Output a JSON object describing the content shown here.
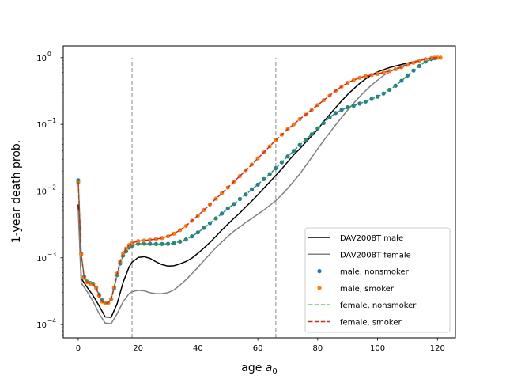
{
  "chart_data": {
    "type": "line",
    "title": "",
    "xlabel": "age",
    "xlabel_symbol": "a",
    "xlabel_sub": "0",
    "ylabel": "1-year death prob.",
    "xlim": [
      -5,
      126
    ],
    "ylim": [
      6.3e-05,
      1.5
    ],
    "yscale": "log",
    "grid": false,
    "legend_position": "lower-right",
    "x_ticks": [
      0,
      20,
      40,
      60,
      80,
      100,
      120
    ],
    "x_tick_labels": [
      "0",
      "20",
      "40",
      "60",
      "80",
      "100",
      "120"
    ],
    "y_ticks": [
      0.0001,
      0.001,
      0.01,
      0.1,
      1
    ],
    "y_tick_labels": [
      "10",
      "10",
      "10",
      "10",
      "10"
    ],
    "y_tick_exponents": [
      "−4",
      "−3",
      "−2",
      "−1",
      "0"
    ],
    "vlines": [
      {
        "x": 18,
        "y_from": 6.3e-05,
        "y_to": 1.0,
        "color": "#b0b0b0",
        "style": "dashed"
      },
      {
        "x": 66,
        "y_from": 6.3e-05,
        "y_to": 1.0,
        "color": "#b0b0b0",
        "style": "dashed"
      }
    ],
    "series": [
      {
        "name": "DAV2008T male",
        "kind": "line",
        "color": "#000000",
        "x": [
          0,
          1,
          3,
          5,
          7,
          9,
          11,
          13,
          15,
          17,
          18,
          20,
          22,
          24,
          26,
          28,
          30,
          32,
          34,
          36,
          38,
          40,
          42,
          44,
          46,
          48,
          50,
          52,
          54,
          56,
          58,
          60,
          62,
          64,
          66,
          68,
          70,
          72,
          74,
          76,
          78,
          80,
          82,
          84,
          86,
          88,
          90,
          92,
          94,
          96,
          98,
          100,
          102,
          104,
          106,
          108,
          110,
          112,
          114,
          116,
          118,
          120
        ],
        "y": [
          0.0063,
          0.00049,
          0.00036,
          0.00027,
          0.00019,
          0.00013,
          0.000128,
          0.000205,
          0.00043,
          0.00073,
          0.00086,
          0.00101,
          0.00104,
          0.00098,
          0.00087,
          0.00079,
          0.00075,
          0.00076,
          0.00081,
          0.00088,
          0.00099,
          0.00117,
          0.0014,
          0.0017,
          0.0021,
          0.0026,
          0.0032,
          0.0039,
          0.0047,
          0.0058,
          0.0071,
          0.0088,
          0.011,
          0.0137,
          0.0172,
          0.0215,
          0.0275,
          0.035,
          0.043,
          0.054,
          0.067,
          0.084,
          0.11,
          0.14,
          0.178,
          0.225,
          0.28,
          0.34,
          0.41,
          0.48,
          0.55,
          0.61,
          0.66,
          0.71,
          0.75,
          0.79,
          0.83,
          0.87,
          0.91,
          0.95,
          0.98,
          1.0
        ]
      },
      {
        "name": "DAV2008T female",
        "kind": "line",
        "color": "#808080",
        "x": [
          0,
          1,
          3,
          5,
          7,
          9,
          11,
          13,
          15,
          17,
          18,
          20,
          22,
          24,
          26,
          28,
          30,
          32,
          34,
          36,
          38,
          40,
          42,
          44,
          46,
          48,
          50,
          52,
          54,
          56,
          58,
          60,
          62,
          64,
          66,
          68,
          70,
          72,
          74,
          76,
          78,
          80,
          82,
          84,
          86,
          88,
          90,
          92,
          94,
          96,
          98,
          100,
          102,
          104,
          106,
          108,
          110,
          112,
          114,
          116,
          118,
          120
        ],
        "y": [
          0.0053,
          0.00042,
          0.00031,
          0.00022,
          0.000145,
          0.000105,
          0.000103,
          0.000145,
          0.00022,
          0.00029,
          0.00031,
          0.000325,
          0.00032,
          0.0003,
          0.00029,
          0.00029,
          0.0003,
          0.00033,
          0.00039,
          0.00047,
          0.00058,
          0.00072,
          0.00091,
          0.00114,
          0.00142,
          0.00173,
          0.0021,
          0.0025,
          0.0029,
          0.0034,
          0.0039,
          0.0045,
          0.0052,
          0.0061,
          0.0072,
          0.0088,
          0.011,
          0.014,
          0.018,
          0.024,
          0.032,
          0.043,
          0.057,
          0.075,
          0.098,
          0.127,
          0.163,
          0.207,
          0.26,
          0.32,
          0.39,
          0.46,
          0.54,
          0.61,
          0.68,
          0.74,
          0.8,
          0.86,
          0.91,
          0.95,
          0.98,
          1.0
        ]
      },
      {
        "name": "male, nonsmoker",
        "kind": "dots",
        "color": "#1f77b4",
        "x": [
          0,
          1,
          2,
          3,
          4,
          5,
          6,
          7,
          8,
          9,
          10,
          11,
          12,
          13,
          14,
          15,
          16,
          17,
          18,
          20,
          22,
          24,
          26,
          28,
          30,
          32,
          34,
          36,
          38,
          40,
          42,
          44,
          46,
          48,
          50,
          52,
          54,
          56,
          58,
          60,
          62,
          64,
          66,
          68,
          70,
          72,
          74,
          76,
          78,
          80,
          82,
          84,
          86,
          88,
          90,
          92,
          94,
          96,
          98,
          100,
          102,
          104,
          106,
          108,
          110,
          112,
          114,
          116,
          118,
          119,
          120,
          121
        ],
        "y": [
          0.0145,
          0.00115,
          0.00052,
          0.00044,
          0.00042,
          0.00041,
          0.00036,
          0.00028,
          0.00023,
          0.00021,
          0.00021,
          0.00024,
          0.00035,
          0.00055,
          0.00082,
          0.00108,
          0.00125,
          0.00142,
          0.00152,
          0.00162,
          0.00163,
          0.00162,
          0.00161,
          0.00161,
          0.00162,
          0.00166,
          0.00175,
          0.00188,
          0.0021,
          0.0024,
          0.0028,
          0.0033,
          0.0039,
          0.0046,
          0.0055,
          0.0064,
          0.0076,
          0.0089,
          0.0106,
          0.0125,
          0.0151,
          0.018,
          0.022,
          0.027,
          0.033,
          0.04,
          0.049,
          0.059,
          0.071,
          0.087,
          0.105,
          0.127,
          0.148,
          0.165,
          0.18,
          0.19,
          0.205,
          0.22,
          0.24,
          0.26,
          0.29,
          0.33,
          0.38,
          0.45,
          0.54,
          0.64,
          0.75,
          0.87,
          0.95,
          0.98,
          1.0,
          1.0
        ]
      },
      {
        "name": "male, smoker",
        "kind": "dots",
        "color": "#ff7f0e",
        "x": [
          0,
          1,
          2,
          3,
          4,
          5,
          6,
          7,
          8,
          9,
          10,
          11,
          12,
          13,
          14,
          15,
          16,
          17,
          18,
          20,
          22,
          24,
          26,
          28,
          30,
          32,
          34,
          36,
          38,
          40,
          42,
          44,
          46,
          48,
          50,
          52,
          54,
          56,
          58,
          60,
          62,
          64,
          66,
          68,
          70,
          72,
          74,
          76,
          78,
          80,
          82,
          84,
          86,
          88,
          90,
          92,
          94,
          96,
          98,
          100,
          102,
          104,
          106,
          108,
          110,
          112,
          114,
          116,
          118,
          119,
          120,
          121
        ],
        "y": [
          0.0135,
          0.00112,
          0.0005,
          0.00043,
          0.00041,
          0.0004,
          0.00035,
          0.00027,
          0.00022,
          0.00021,
          0.00021,
          0.00024,
          0.00036,
          0.00058,
          0.00088,
          0.00117,
          0.00138,
          0.00155,
          0.00166,
          0.00178,
          0.00182,
          0.00186,
          0.00191,
          0.00198,
          0.0021,
          0.0023,
          0.0026,
          0.003,
          0.0036,
          0.0043,
          0.0052,
          0.0063,
          0.0077,
          0.0093,
          0.0113,
          0.0138,
          0.0168,
          0.0205,
          0.025,
          0.031,
          0.038,
          0.047,
          0.058,
          0.07,
          0.085,
          0.1,
          0.12,
          0.14,
          0.165,
          0.195,
          0.23,
          0.27,
          0.32,
          0.37,
          0.42,
          0.46,
          0.5,
          0.53,
          0.55,
          0.57,
          0.6,
          0.63,
          0.67,
          0.72,
          0.78,
          0.84,
          0.9,
          0.95,
          0.99,
          1.0,
          1.0,
          1.0
        ]
      },
      {
        "name": "female, nonsmoker",
        "kind": "dashed",
        "color": "#2ca02c",
        "x": [
          0,
          1,
          2,
          3,
          4,
          5,
          6,
          7,
          8,
          9,
          10,
          11,
          12,
          13,
          14,
          15,
          16,
          17,
          18,
          20,
          22,
          24,
          26,
          28,
          30,
          32,
          34,
          36,
          38,
          40,
          42,
          44,
          46,
          48,
          50,
          52,
          54,
          56,
          58,
          60,
          62,
          64,
          66,
          68,
          70,
          72,
          74,
          76,
          78,
          80,
          82,
          84,
          86,
          88,
          90,
          92,
          94,
          96,
          98,
          100,
          102,
          104,
          106,
          108,
          110,
          112,
          114,
          116,
          118,
          119,
          120,
          121
        ],
        "y": [
          0.0145,
          0.00115,
          0.00052,
          0.00044,
          0.00042,
          0.00041,
          0.00036,
          0.00028,
          0.00023,
          0.00021,
          0.00021,
          0.00024,
          0.00035,
          0.00055,
          0.00082,
          0.00108,
          0.00125,
          0.00142,
          0.00152,
          0.00162,
          0.00163,
          0.00162,
          0.00161,
          0.00161,
          0.00162,
          0.00166,
          0.00175,
          0.00188,
          0.0021,
          0.0024,
          0.0028,
          0.0033,
          0.0039,
          0.0046,
          0.0055,
          0.0064,
          0.0076,
          0.0089,
          0.0106,
          0.0125,
          0.0151,
          0.018,
          0.022,
          0.027,
          0.033,
          0.04,
          0.049,
          0.059,
          0.071,
          0.087,
          0.105,
          0.127,
          0.148,
          0.165,
          0.18,
          0.19,
          0.205,
          0.22,
          0.24,
          0.26,
          0.29,
          0.33,
          0.38,
          0.45,
          0.54,
          0.64,
          0.75,
          0.87,
          0.95,
          0.98,
          1.0,
          1.0
        ]
      },
      {
        "name": "female, smoker",
        "kind": "dashed",
        "color": "#d62728",
        "x": [
          0,
          1,
          2,
          3,
          4,
          5,
          6,
          7,
          8,
          9,
          10,
          11,
          12,
          13,
          14,
          15,
          16,
          17,
          18,
          20,
          22,
          24,
          26,
          28,
          30,
          32,
          34,
          36,
          38,
          40,
          42,
          44,
          46,
          48,
          50,
          52,
          54,
          56,
          58,
          60,
          62,
          64,
          66,
          68,
          70,
          72,
          74,
          76,
          78,
          80,
          82,
          84,
          86,
          88,
          90,
          92,
          94,
          96,
          98,
          100,
          102,
          104,
          106,
          108,
          110,
          112,
          114,
          116,
          118,
          119,
          120,
          121
        ],
        "y": [
          0.0135,
          0.00112,
          0.0005,
          0.00043,
          0.00041,
          0.0004,
          0.00035,
          0.00027,
          0.00022,
          0.00021,
          0.00021,
          0.00024,
          0.00036,
          0.00058,
          0.00088,
          0.00117,
          0.00138,
          0.00155,
          0.00166,
          0.00178,
          0.00182,
          0.00186,
          0.00191,
          0.00198,
          0.0021,
          0.0023,
          0.0026,
          0.003,
          0.0036,
          0.0043,
          0.0052,
          0.0063,
          0.0077,
          0.0093,
          0.0113,
          0.0138,
          0.0168,
          0.0205,
          0.025,
          0.031,
          0.038,
          0.047,
          0.058,
          0.07,
          0.085,
          0.1,
          0.12,
          0.14,
          0.165,
          0.195,
          0.23,
          0.27,
          0.32,
          0.37,
          0.42,
          0.46,
          0.5,
          0.53,
          0.55,
          0.57,
          0.6,
          0.63,
          0.67,
          0.72,
          0.78,
          0.84,
          0.9,
          0.95,
          0.99,
          1.0,
          1.0,
          1.0
        ]
      }
    ]
  }
}
